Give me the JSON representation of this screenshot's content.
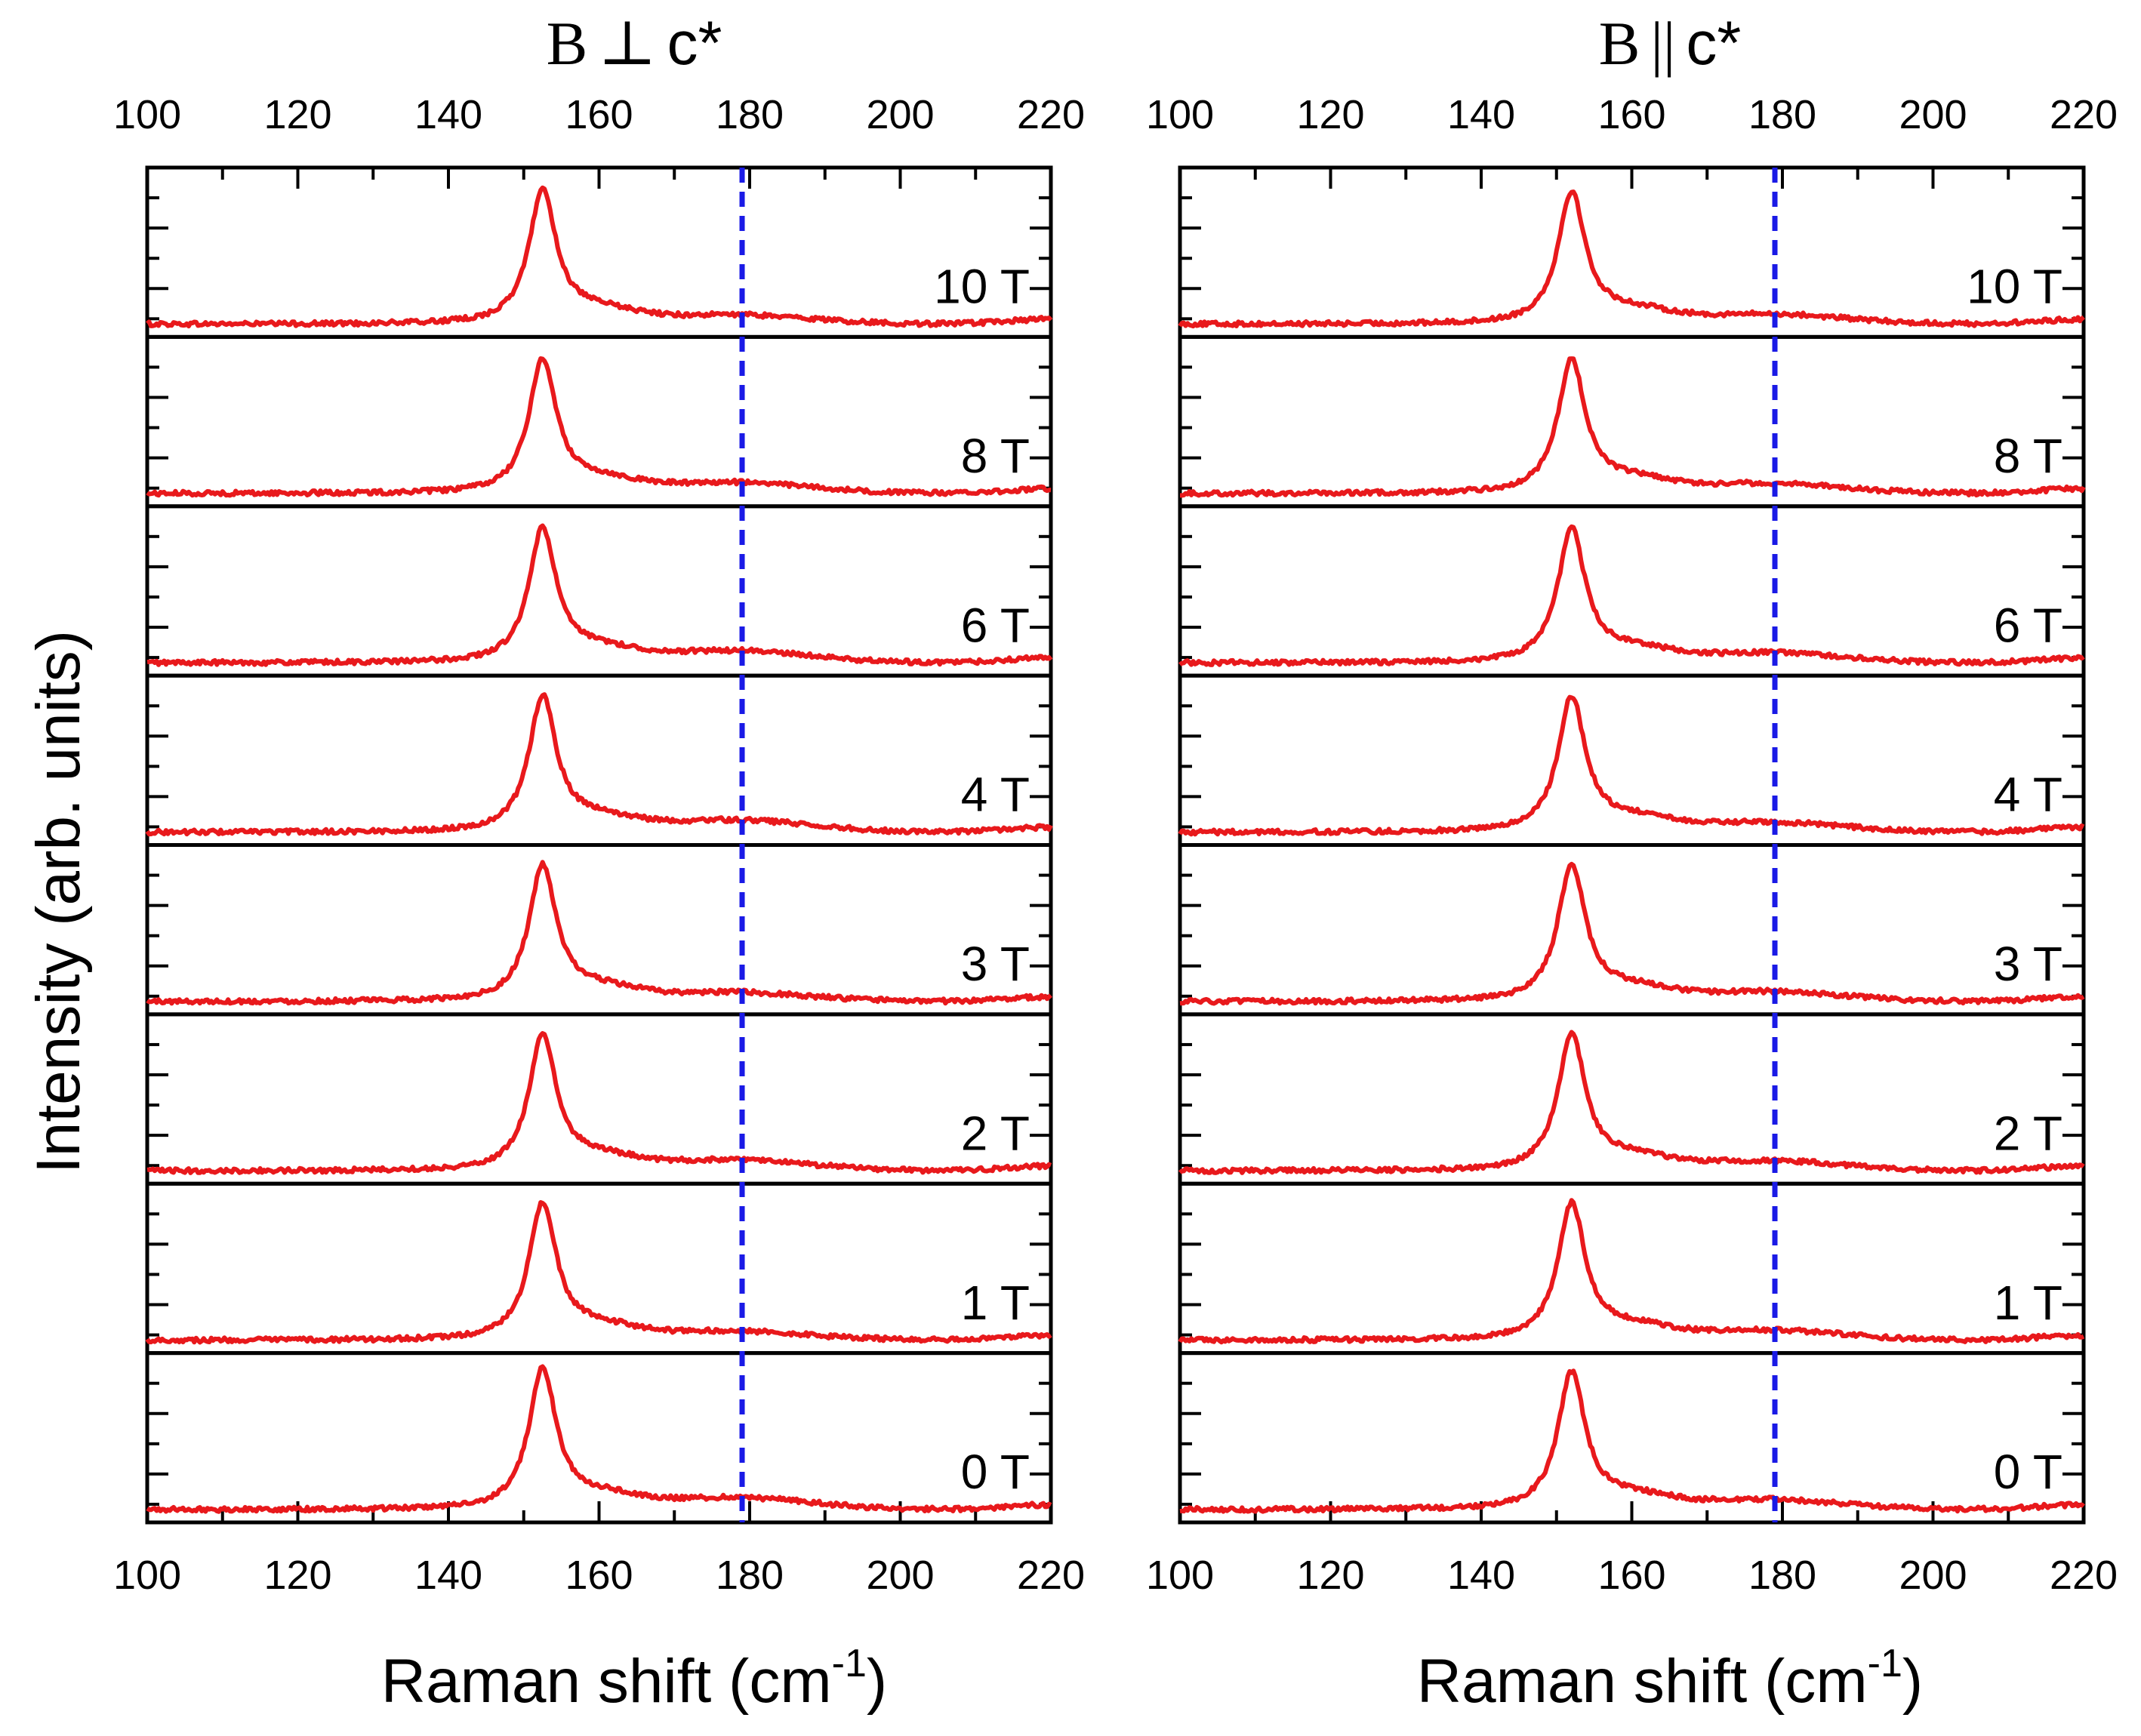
{
  "chart_data": [
    {
      "type": "line",
      "id": "left",
      "title_prefix": "B",
      "title_symbol": "⊥",
      "title_suffix": "c*",
      "xlabel": "Raman shift (cm",
      "xlabel_sup": "-1",
      "xlabel_close": ")",
      "ylabel": "Intensity (arb. units)",
      "xlim": [
        100,
        220
      ],
      "xticks": [
        100,
        120,
        140,
        160,
        180,
        200,
        220
      ],
      "reference_line_x": 179,
      "reference_line_style": "dashed",
      "line_color": "#e8191c",
      "ref_color": "#1a1ae6",
      "series": [
        {
          "name": "10 T",
          "peak_height": 0.82,
          "baseline": 0.1,
          "hump": 0.09
        },
        {
          "name": "8 T",
          "peak_height": 0.82,
          "baseline": 0.1,
          "hump": 0.11
        },
        {
          "name": "6 T",
          "peak_height": 0.82,
          "baseline": 0.1,
          "hump": 0.12
        },
        {
          "name": "4 T",
          "peak_height": 0.83,
          "baseline": 0.1,
          "hump": 0.12
        },
        {
          "name": "3 T",
          "peak_height": 0.83,
          "baseline": 0.1,
          "hump": 0.09
        },
        {
          "name": "2 T",
          "peak_height": 0.83,
          "baseline": 0.1,
          "hump": 0.11
        },
        {
          "name": "1 T",
          "peak_height": 0.84,
          "baseline": 0.1,
          "hump": 0.09
        },
        {
          "name": "0 T",
          "peak_height": 0.86,
          "baseline": 0.1,
          "hump": 0.12
        }
      ],
      "peak_center": 152.5,
      "hump_center": 178
    },
    {
      "type": "line",
      "id": "right",
      "title_prefix": "B",
      "title_symbol": "||",
      "title_suffix": "c*",
      "xlabel": "Raman shift (cm",
      "xlabel_sup": "-1",
      "xlabel_close": ")",
      "xlim": [
        100,
        220
      ],
      "xticks": [
        100,
        120,
        140,
        160,
        180,
        200,
        220
      ],
      "reference_line_x": 179,
      "reference_line_style": "dashed",
      "line_color": "#e8191c",
      "ref_color": "#1a1ae6",
      "series": [
        {
          "name": "10 T",
          "peak_height": 0.81,
          "baseline": 0.1,
          "hump": 0.1
        },
        {
          "name": "8 T",
          "peak_height": 0.82,
          "baseline": 0.1,
          "hump": 0.1
        },
        {
          "name": "6 T",
          "peak_height": 0.82,
          "baseline": 0.1,
          "hump": 0.1
        },
        {
          "name": "4 T",
          "peak_height": 0.83,
          "baseline": 0.1,
          "hump": 0.1
        },
        {
          "name": "3 T",
          "peak_height": 0.84,
          "baseline": 0.1,
          "hump": 0.1
        },
        {
          "name": "2 T",
          "peak_height": 0.84,
          "baseline": 0.1,
          "hump": 0.1
        },
        {
          "name": "1 T",
          "peak_height": 0.84,
          "baseline": 0.1,
          "hump": 0.1
        },
        {
          "name": "0 T",
          "peak_height": 0.84,
          "baseline": 0.1,
          "hump": 0.1
        }
      ],
      "peak_center": 152,
      "hump_center": 178
    }
  ]
}
